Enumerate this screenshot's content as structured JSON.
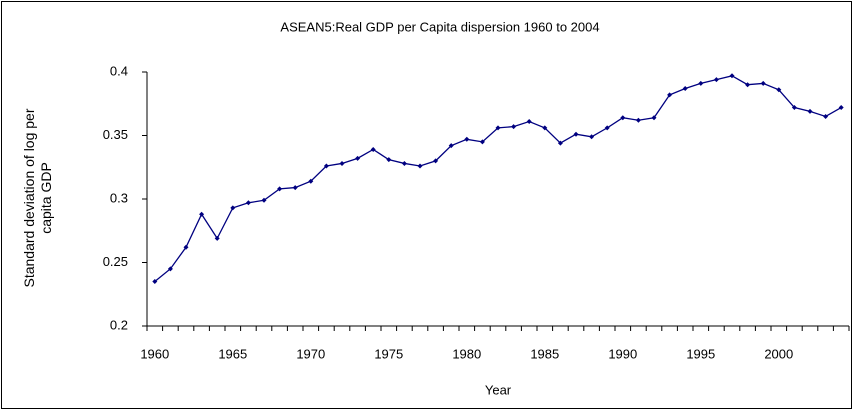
{
  "chart_data": {
    "type": "line",
    "title": "ASEAN5:Real GDP per Capita dispersion 1960 to 2004",
    "x_label": "Year",
    "y_label": "Standard deviation of log per capita GDP",
    "categories": [
      "1960",
      null,
      null,
      null,
      null,
      "1965",
      null,
      null,
      null,
      null,
      "1970",
      null,
      null,
      null,
      null,
      "1975",
      null,
      null,
      null,
      null,
      "1980",
      null,
      null,
      null,
      null,
      "1985",
      null,
      null,
      null,
      null,
      "1990",
      null,
      null,
      null,
      null,
      "1995",
      null,
      null,
      null,
      null,
      "2000",
      null,
      null,
      null,
      null
    ],
    "series": [
      {
        "name": "Standard deviation of log per capita GDP",
        "color": "#000080",
        "values": [
          0.235,
          0.245,
          0.262,
          0.288,
          0.269,
          0.293,
          0.297,
          0.299,
          0.308,
          0.309,
          0.314,
          0.326,
          0.328,
          0.332,
          0.339,
          0.331,
          0.328,
          0.326,
          0.33,
          0.342,
          0.347,
          0.345,
          0.356,
          0.357,
          0.361,
          0.356,
          0.344,
          0.351,
          0.349,
          0.356,
          0.364,
          0.362,
          0.364,
          0.382,
          0.387,
          0.391,
          0.394,
          0.397,
          0.39,
          0.391,
          0.386,
          0.372,
          0.369,
          0.365,
          0.372
        ]
      }
    ],
    "ylim": [
      0.2,
      0.4
    ],
    "yticks": [
      0.2,
      0.25,
      0.3,
      0.35,
      0.4
    ],
    "grid": false
  }
}
